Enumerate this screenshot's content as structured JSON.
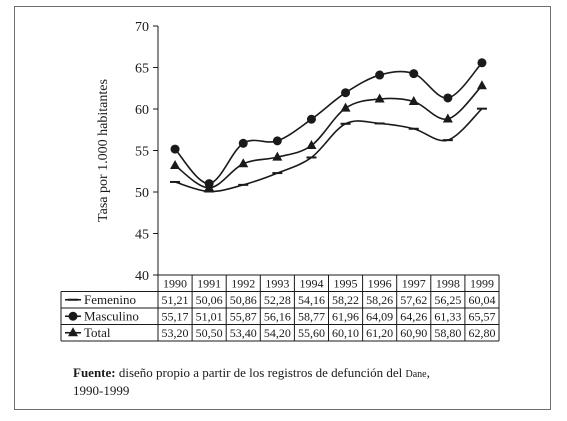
{
  "chart_data": {
    "type": "line",
    "ylabel": "Tasa por 1.000 habitantes",
    "xlabel": "",
    "title": "",
    "ylim": [
      40,
      70
    ],
    "yticks": [
      40,
      45,
      50,
      55,
      60,
      65,
      70
    ],
    "categories": [
      "1990",
      "1991",
      "1992",
      "1993",
      "1994",
      "1995",
      "1996",
      "1997",
      "1998",
      "1999"
    ],
    "series": [
      {
        "name": "Femenino",
        "marker": "dash",
        "color": "#1a1a1a",
        "values": [
          51.21,
          50.06,
          50.86,
          52.28,
          54.16,
          58.22,
          58.26,
          57.62,
          56.25,
          60.04
        ],
        "labels": [
          "51,21",
          "50,06",
          "50,86",
          "52,28",
          "54,16",
          "58,22",
          "58,26",
          "57,62",
          "56,25",
          "60,04"
        ]
      },
      {
        "name": "Masculino",
        "marker": "circle",
        "color": "#1a1a1a",
        "values": [
          55.17,
          51.01,
          55.87,
          56.16,
          58.77,
          61.96,
          64.09,
          64.26,
          61.33,
          65.57
        ],
        "labels": [
          "55,17",
          "51,01",
          "55,87",
          "56,16",
          "58,77",
          "61,96",
          "64,09",
          "64,26",
          "61,33",
          "65,57"
        ]
      },
      {
        "name": "Total",
        "marker": "triangle",
        "color": "#1a1a1a",
        "values": [
          53.2,
          50.5,
          53.4,
          54.2,
          55.6,
          60.1,
          61.2,
          60.9,
          58.8,
          62.8
        ],
        "labels": [
          "53,20",
          "50,50",
          "53,40",
          "54,20",
          "55,60",
          "60,10",
          "61,20",
          "60,90",
          "58,80",
          "62,80"
        ]
      }
    ],
    "grid": false,
    "legend": "table-left"
  },
  "source": {
    "label": "Fuente:",
    "text": "diseño propio a partir de los registros de defunción del",
    "org": "Dane",
    "years": "1990-1999"
  }
}
